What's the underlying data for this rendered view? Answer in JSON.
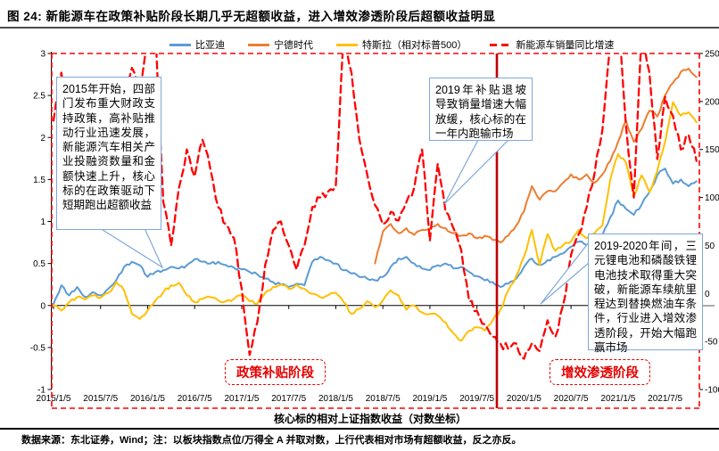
{
  "title": "图  24:  新能源车在政策补贴阶段长期几乎无超额收益，进入增效渗透阶段后超额收益明显",
  "footer": "数据来源：东北证券，Wind；注：以板块指数点位/万得全 A 并取对数，上行代表相对市场有超额收益，反之亦反。",
  "chart_data": {
    "type": "line",
    "xlabel": "核心标的相对上证指数收益（对数坐标）",
    "x_axis": {
      "tick_t": [
        0,
        6,
        12,
        18,
        24,
        30,
        36,
        42,
        48,
        54,
        60,
        66,
        72,
        78
      ],
      "tick_labels": [
        "2015/1/5",
        "2015/7/5",
        "2016/1/5",
        "2016/7/5",
        "2017/1/5",
        "2017/7/5",
        "2018/1/5",
        "2018/7/5",
        "2019/1/5",
        "2019/7/5",
        "2020/1/5",
        "2020/7/5",
        "2021/1/5",
        "2021/7/5"
      ]
    },
    "y_axis_left": {
      "range": [
        -1,
        3
      ],
      "ticks": [
        "3",
        "2.5",
        "2",
        "1.5",
        "1",
        "0.5",
        "0",
        "-0.5",
        "-1"
      ]
    },
    "y_axis_right": {
      "range": [
        -100,
        250
      ],
      "ticks": [
        "250",
        "200",
        "150",
        "100",
        "50",
        "0",
        "-50",
        "-100"
      ]
    },
    "phases": [
      {
        "label": "政策补贴阶段"
      },
      {
        "label": "增效渗透阶段"
      }
    ],
    "annotations": [
      "2015年开始，四部门发布重大财政支持政策，高补贴推动行业迅速发展，新能源汽车相关产业投融资数量和金额快速上升，核心标的在政策驱动下短期跑出超额收益",
      "2019年补贴退坡导致销量增速大幅放缓，核心标的在一年内跑输市场",
      "2019-2020年间，三元锂电池和磷酸铁锂电池技术取得重大突破，新能源车续航里程达到替换燃油车条件，行业进入增效渗透阶段，开始大幅跑赢市场"
    ],
    "series": [
      {
        "name": "比亚迪",
        "color": "#5B9BD5",
        "axis": "left",
        "style": "solid",
        "points": [
          [
            0,
            0.02
          ],
          [
            1,
            0.24
          ],
          [
            2,
            0.12
          ],
          [
            3,
            0.22
          ],
          [
            4,
            0.1
          ],
          [
            5,
            0.16
          ],
          [
            6,
            0.12
          ],
          [
            7,
            0.2
          ],
          [
            8,
            0.3
          ],
          [
            9,
            0.46
          ],
          [
            10,
            0.52
          ],
          [
            11,
            0.48
          ],
          [
            12,
            0.34
          ],
          [
            13,
            0.4
          ],
          [
            14,
            0.42
          ],
          [
            15,
            0.46
          ],
          [
            16,
            0.44
          ],
          [
            17,
            0.48
          ],
          [
            18,
            0.55
          ],
          [
            19,
            0.52
          ],
          [
            20,
            0.5
          ],
          [
            21,
            0.52
          ],
          [
            22,
            0.48
          ],
          [
            23,
            0.45
          ],
          [
            24,
            0.43
          ],
          [
            25,
            0.4
          ],
          [
            26,
            0.37
          ],
          [
            27,
            0.32
          ],
          [
            28,
            0.28
          ],
          [
            29,
            0.25
          ],
          [
            30,
            0.22
          ],
          [
            31,
            0.26
          ],
          [
            32,
            0.24
          ],
          [
            33,
            0.52
          ],
          [
            34,
            0.58
          ],
          [
            35,
            0.54
          ],
          [
            36,
            0.5
          ],
          [
            37,
            0.42
          ],
          [
            38,
            0.38
          ],
          [
            39,
            0.34
          ],
          [
            40,
            0.32
          ],
          [
            41,
            0.3
          ],
          [
            42,
            0.34
          ],
          [
            43,
            0.46
          ],
          [
            44,
            0.56
          ],
          [
            45,
            0.58
          ],
          [
            46,
            0.5
          ],
          [
            47,
            0.44
          ],
          [
            48,
            0.42
          ],
          [
            49,
            0.48
          ],
          [
            50,
            0.5
          ],
          [
            51,
            0.44
          ],
          [
            52,
            0.46
          ],
          [
            53,
            0.4
          ],
          [
            54,
            0.35
          ],
          [
            55,
            0.3
          ],
          [
            56,
            0.28
          ],
          [
            57,
            0.22
          ],
          [
            58,
            0.26
          ],
          [
            59,
            0.32
          ],
          [
            60,
            0.46
          ],
          [
            61,
            0.56
          ],
          [
            62,
            0.48
          ],
          [
            63,
            0.54
          ],
          [
            64,
            0.58
          ],
          [
            65,
            0.62
          ],
          [
            66,
            0.7
          ],
          [
            67,
            0.76
          ],
          [
            68,
            0.72
          ],
          [
            69,
            0.78
          ],
          [
            70,
            0.84
          ],
          [
            71,
            1.05
          ],
          [
            72,
            1.25
          ],
          [
            73,
            1.15
          ],
          [
            74,
            1.08
          ],
          [
            75,
            1.2
          ],
          [
            76,
            1.35
          ],
          [
            77,
            1.55
          ],
          [
            78,
            1.63
          ],
          [
            79,
            1.45
          ],
          [
            80,
            1.5
          ],
          [
            81,
            1.42
          ],
          [
            82,
            1.48
          ]
        ]
      },
      {
        "name": "宁德时代",
        "color": "#ED7D31",
        "axis": "left",
        "style": "solid",
        "points": [
          [
            41,
            0.5
          ],
          [
            42,
            0.88
          ],
          [
            43,
            0.97
          ],
          [
            44,
            0.86
          ],
          [
            45,
            0.92
          ],
          [
            46,
            0.84
          ],
          [
            47,
            0.9
          ],
          [
            48,
            0.92
          ],
          [
            49,
            0.97
          ],
          [
            50,
            0.92
          ],
          [
            51,
            0.86
          ],
          [
            52,
            0.83
          ],
          [
            53,
            0.86
          ],
          [
            54,
            0.8
          ],
          [
            55,
            0.83
          ],
          [
            56,
            0.78
          ],
          [
            57,
            0.75
          ],
          [
            58,
            0.83
          ],
          [
            59,
            0.95
          ],
          [
            60,
            1.12
          ],
          [
            61,
            1.42
          ],
          [
            62,
            1.26
          ],
          [
            63,
            1.36
          ],
          [
            64,
            1.36
          ],
          [
            65,
            1.46
          ],
          [
            66,
            1.56
          ],
          [
            67,
            1.5
          ],
          [
            68,
            1.56
          ],
          [
            69,
            1.46
          ],
          [
            70,
            1.56
          ],
          [
            71,
            1.72
          ],
          [
            72,
            1.95
          ],
          [
            73,
            2.2
          ],
          [
            74,
            1.95
          ],
          [
            75,
            2.1
          ],
          [
            76,
            2.32
          ],
          [
            77,
            2.25
          ],
          [
            78,
            2.5
          ],
          [
            79,
            2.65
          ],
          [
            80,
            2.78
          ],
          [
            81,
            2.82
          ],
          [
            82,
            2.72
          ]
        ]
      },
      {
        "name": "特斯拉（相对标普500）",
        "color": "#FFC000",
        "axis": "left",
        "style": "solid",
        "points": [
          [
            0,
            0.0
          ],
          [
            1,
            -0.06
          ],
          [
            2,
            0.04
          ],
          [
            3,
            0.1
          ],
          [
            4,
            0.07
          ],
          [
            5,
            0.12
          ],
          [
            6,
            0.09
          ],
          [
            7,
            0.15
          ],
          [
            8,
            0.28
          ],
          [
            9,
            0.18
          ],
          [
            10,
            -0.1
          ],
          [
            11,
            -0.16
          ],
          [
            12,
            -0.06
          ],
          [
            13,
            0.06
          ],
          [
            14,
            0.16
          ],
          [
            15,
            0.24
          ],
          [
            16,
            0.27
          ],
          [
            17,
            0.12
          ],
          [
            18,
            0.04
          ],
          [
            19,
            0.08
          ],
          [
            20,
            0.1
          ],
          [
            21,
            0.06
          ],
          [
            22,
            0.05
          ],
          [
            23,
            0.08
          ],
          [
            24,
            0.12
          ],
          [
            25,
            0.05
          ],
          [
            26,
            0.02
          ],
          [
            27,
            0.15
          ],
          [
            28,
            0.22
          ],
          [
            29,
            0.25
          ],
          [
            30,
            0.2
          ],
          [
            31,
            0.25
          ],
          [
            32,
            0.2
          ],
          [
            33,
            0.14
          ],
          [
            34,
            0.1
          ],
          [
            35,
            0.12
          ],
          [
            36,
            0.15
          ],
          [
            37,
            0.04
          ],
          [
            38,
            -0.1
          ],
          [
            39,
            -0.04
          ],
          [
            40,
            0.05
          ],
          [
            41,
            -0.02
          ],
          [
            42,
            0.06
          ],
          [
            43,
            0.18
          ],
          [
            44,
            0.12
          ],
          [
            45,
            -0.05
          ],
          [
            46,
            0.0
          ],
          [
            47,
            -0.08
          ],
          [
            48,
            -0.1
          ],
          [
            49,
            -0.12
          ],
          [
            50,
            -0.2
          ],
          [
            51,
            -0.33
          ],
          [
            52,
            -0.42
          ],
          [
            53,
            -0.3
          ],
          [
            54,
            -0.26
          ],
          [
            55,
            -0.3
          ],
          [
            56,
            -0.18
          ],
          [
            57,
            -0.05
          ],
          [
            58,
            0.18
          ],
          [
            59,
            0.35
          ],
          [
            60,
            0.58
          ],
          [
            61,
            0.9
          ],
          [
            62,
            0.48
          ],
          [
            63,
            0.85
          ],
          [
            64,
            0.65
          ],
          [
            65,
            0.72
          ],
          [
            66,
            0.76
          ],
          [
            67,
            0.9
          ],
          [
            68,
            0.8
          ],
          [
            69,
            0.86
          ],
          [
            70,
            0.95
          ],
          [
            71,
            1.5
          ],
          [
            72,
            1.8
          ],
          [
            73,
            1.7
          ],
          [
            74,
            1.3
          ],
          [
            75,
            1.55
          ],
          [
            76,
            1.35
          ],
          [
            77,
            1.6
          ],
          [
            78,
            1.95
          ],
          [
            79,
            2.42
          ],
          [
            80,
            2.26
          ],
          [
            81,
            2.3
          ],
          [
            82,
            2.18
          ]
        ]
      },
      {
        "name": "新能源车销量同比增速",
        "color": "#FF0000",
        "axis": "right",
        "style": "dashed",
        "points": [
          [
            0,
            180
          ],
          [
            1,
            230
          ],
          [
            2,
            160
          ],
          [
            3,
            145
          ],
          [
            4,
            170
          ],
          [
            5,
            155
          ],
          [
            6,
            165
          ],
          [
            7,
            190
          ],
          [
            8,
            175
          ],
          [
            9,
            205
          ],
          [
            10,
            235
          ],
          [
            11,
            215
          ],
          [
            12,
            260
          ],
          [
            13,
            275
          ],
          [
            14,
            95
          ],
          [
            15,
            50
          ],
          [
            16,
            110
          ],
          [
            17,
            150
          ],
          [
            18,
            122
          ],
          [
            19,
            160
          ],
          [
            20,
            130
          ],
          [
            21,
            90
          ],
          [
            22,
            72
          ],
          [
            23,
            58
          ],
          [
            24,
            5
          ],
          [
            25,
            -64
          ],
          [
            26,
            -30
          ],
          [
            27,
            30
          ],
          [
            28,
            66
          ],
          [
            29,
            75
          ],
          [
            30,
            50
          ],
          [
            31,
            25
          ],
          [
            32,
            50
          ],
          [
            33,
            90
          ],
          [
            34,
            100
          ],
          [
            35,
            106
          ],
          [
            36,
            112
          ],
          [
            37,
            270
          ],
          [
            38,
            230
          ],
          [
            39,
            161
          ],
          [
            40,
            124
          ],
          [
            41,
            92
          ],
          [
            42,
            72
          ],
          [
            43,
            85
          ],
          [
            44,
            76
          ],
          [
            45,
            95
          ],
          [
            46,
            110
          ],
          [
            47,
            150
          ],
          [
            48,
            55
          ],
          [
            49,
            135
          ],
          [
            50,
            85
          ],
          [
            51,
            68
          ],
          [
            52,
            45
          ],
          [
            53,
            -8
          ],
          [
            54,
            -18
          ],
          [
            55,
            -32
          ],
          [
            56,
            -45
          ],
          [
            57,
            -52
          ],
          [
            58,
            -58
          ],
          [
            59,
            -52
          ],
          [
            60,
            -68
          ],
          [
            61,
            -52
          ],
          [
            62,
            -60
          ],
          [
            63,
            -28
          ],
          [
            64,
            -45
          ],
          [
            65,
            -12
          ],
          [
            66,
            40
          ],
          [
            67,
            62
          ],
          [
            68,
            90
          ],
          [
            69,
            125
          ],
          [
            70,
            170
          ],
          [
            71,
            260
          ],
          [
            72,
            290
          ],
          [
            73,
            175
          ],
          [
            74,
            100
          ],
          [
            75,
            270
          ],
          [
            76,
            230
          ],
          [
            77,
            140
          ],
          [
            78,
            205
          ],
          [
            79,
            185
          ],
          [
            80,
            150
          ],
          [
            81,
            165
          ],
          [
            82,
            138
          ]
        ]
      }
    ]
  }
}
